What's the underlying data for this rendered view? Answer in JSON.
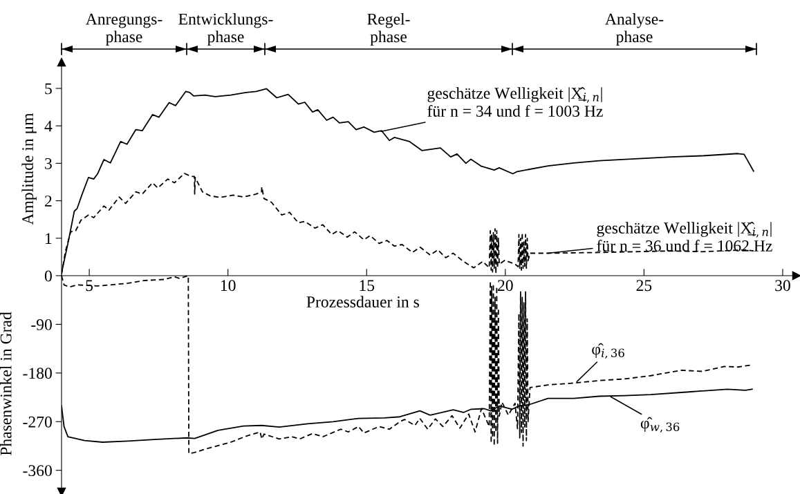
{
  "chart_data": [
    {
      "type": "line",
      "xlabel": "Prozessdauer in s",
      "ylabel": "Amplitude in μm",
      "xlim": [
        4,
        30.5
      ],
      "ylim": [
        0,
        5.7
      ],
      "xticks": [
        5,
        10,
        15,
        20,
        25,
        30
      ],
      "yticks": [
        0,
        1,
        2,
        3,
        4,
        5
      ],
      "series": [
        {
          "color": "#000000",
          "line_style": "solid",
          "x": [
            4.0,
            4.23,
            4.46,
            4.56,
            4.74,
            4.97,
            5.16,
            5.3,
            5.53,
            5.76,
            6.13,
            6.36,
            6.68,
            6.91,
            7.28,
            7.51,
            7.88,
            8.11,
            8.48,
            8.62,
            8.76,
            9.17,
            9.54,
            10.1,
            10.65,
            11.02,
            11.39,
            11.76,
            12.17,
            12.54,
            12.77,
            13.05,
            13.24,
            13.56,
            13.79,
            14.02,
            14.34,
            14.62,
            14.9,
            15.27,
            15.54,
            15.82,
            16.0,
            16.55,
            17.0,
            17.66,
            18.03,
            18.26,
            18.58,
            18.76,
            19.14,
            19.6,
            19.78,
            20.27,
            20.43,
            21.54,
            22.47,
            23.39,
            24.68,
            25.98,
            27.09,
            28.38,
            28.61,
            28.74,
            28.95
          ],
          "values": [
            0.07,
            0.86,
            1.72,
            1.79,
            2.17,
            2.62,
            2.58,
            2.72,
            3.1,
            3.01,
            3.58,
            3.51,
            3.9,
            3.87,
            4.3,
            4.23,
            4.62,
            4.54,
            4.92,
            4.89,
            4.8,
            4.82,
            4.78,
            4.82,
            4.89,
            4.92,
            4.99,
            4.75,
            4.84,
            4.58,
            4.63,
            4.37,
            4.43,
            4.15,
            4.23,
            4.08,
            4.11,
            3.9,
            3.97,
            3.83,
            3.87,
            3.61,
            3.69,
            3.58,
            3.34,
            3.41,
            3.17,
            3.25,
            3.0,
            3.11,
            2.92,
            2.82,
            2.88,
            2.72,
            2.78,
            2.93,
            3.01,
            3.07,
            3.12,
            3.17,
            3.2,
            3.26,
            3.24,
            3.07,
            2.79
          ]
        },
        {
          "color": "#000000",
          "line_style": "dashed",
          "x": [
            4.0,
            4.14,
            4.33,
            4.51,
            4.7,
            4.97,
            5.16,
            5.53,
            5.71,
            6.08,
            6.31,
            6.68,
            6.91,
            7.28,
            7.47,
            7.83,
            8.07,
            8.43,
            8.67,
            8.79,
            8.8,
            8.82,
            9.08,
            9.36,
            9.73,
            10.19,
            10.56,
            11.02,
            11.21,
            11.22,
            11.3,
            11.57,
            11.94,
            12.22,
            12.54,
            12.77,
            13.14,
            13.42,
            13.74,
            13.97,
            14.3,
            14.57,
            14.9,
            15.13,
            15.45,
            15.73,
            16.0,
            16.28,
            16.65,
            16.93,
            17.29,
            17.57,
            17.85,
            18.12,
            18.49,
            18.86,
            19.19,
            19.42,
            19.46,
            19.49,
            19.51,
            19.54,
            19.57,
            19.6,
            19.63,
            19.66,
            19.69,
            19.72,
            19.75,
            19.78,
            19.98,
            20.35,
            20.46,
            20.49,
            20.52,
            20.55,
            20.58,
            20.61,
            20.64,
            20.67,
            20.7,
            20.73,
            20.76,
            20.79,
            20.82,
            20.89,
            21.54,
            23.39,
            25.24,
            25.98,
            27.09,
            28.66,
            28.95
          ],
          "values": [
            0.03,
            0.65,
            1.17,
            1.2,
            1.48,
            1.62,
            1.55,
            1.86,
            1.75,
            2.1,
            1.93,
            2.24,
            2.18,
            2.48,
            2.34,
            2.58,
            2.48,
            2.73,
            2.65,
            2.65,
            2.18,
            2.62,
            2.24,
            2.13,
            2.09,
            2.15,
            2.1,
            2.18,
            2.24,
            2.37,
            2.06,
            1.96,
            1.62,
            1.69,
            1.41,
            1.45,
            1.27,
            1.36,
            1.1,
            1.2,
            1.03,
            1.17,
            0.96,
            1.07,
            0.86,
            0.94,
            0.79,
            0.83,
            0.62,
            0.76,
            0.55,
            0.69,
            0.48,
            0.6,
            0.38,
            0.21,
            0.38,
            0.21,
            1.2,
            0.15,
            1.1,
            0.1,
            1.15,
            0.2,
            1.25,
            0.05,
            1.2,
            0.2,
            1.0,
            0.3,
            0.41,
            0.31,
            0.24,
            1.1,
            0.2,
            1.0,
            0.15,
            1.15,
            0.2,
            0.9,
            0.25,
            1.1,
            0.2,
            1.0,
            0.4,
            0.6,
            0.6,
            0.62,
            0.65,
            0.66,
            0.64,
            0.69,
            0.66
          ]
        }
      ],
      "annotations": [
        "Anregungs-\nphase",
        "Entwicklungs-\nphase",
        "Regel-\nphase",
        "Analyse-\nphase",
        {
          "text": "geschätze Welligkeit |X̲̂$_{i,n}$|\nfür n = 34 und f = 1003 Hz",
          "x": 15.52,
          "y": 3.85
        },
        {
          "text": "geschätze Welligkeit |X̲̂$_{i,n}$|\nfür n = 36 und f = 1062 Hz",
          "x": 21.53,
          "y": 0.6
        }
      ]
    },
    {
      "type": "line",
      "ylabel": "Phasenwinkel in Grad",
      "xlim": [
        4,
        30.5
      ],
      "ylim": [
        -400,
        0
      ],
      "tick_labels": "y",
      "yticks": [
        {
          "value": -90,
          "label": "-90"
        },
        {
          "value": -180,
          "label": "-180"
        },
        {
          "value": -270,
          "label": "-270"
        },
        {
          "value": -360,
          "label": "-360"
        }
      ],
      "series": [
        {
          "color": "#000000",
          "line_style": "solid",
          "x": [
            4.0,
            4.09,
            4.23,
            4.83,
            5.48,
            6.4,
            7.33,
            8.53,
            8.8,
            9.64,
            10.56,
            11.21,
            11.85,
            12.87,
            13.79,
            14.71,
            15.64,
            16.2,
            16.92,
            17.29,
            18.12,
            18.49,
            18.77,
            19.24,
            19.47,
            19.79,
            20.25,
            20.49,
            20.89,
            21.54,
            22.47,
            23.39,
            24.3,
            25.24,
            26.62,
            28.0,
            28.66,
            28.9
          ],
          "values": [
            -241,
            -279,
            -298,
            -305,
            -308,
            -306,
            -303,
            -300,
            -301,
            -286,
            -278,
            -277,
            -280,
            -274,
            -270,
            -264,
            -263,
            -261,
            -250,
            -258,
            -248,
            -253,
            -247,
            -246,
            -250,
            -241,
            -247,
            -241,
            -238,
            -227,
            -227,
            -223,
            -222,
            -220,
            -215,
            -210,
            -212,
            -210
          ]
        },
        {
          "color": "#000000",
          "line_style": "dashed",
          "x": [
            4.0,
            4.09,
            4.28,
            4.56,
            5.3,
            5.76,
            6.4,
            6.96,
            7.7,
            8.07,
            8.25,
            8.57,
            8.59,
            8.8,
            9.17,
            10.1,
            10.65,
            11.16,
            11.22,
            11.3,
            11.85,
            12.31,
            12.59,
            13.05,
            13.42,
            14.07,
            14.34,
            14.71,
            14.9,
            15.45,
            15.82,
            16.2,
            16.37,
            16.74,
            16.92,
            17.2,
            17.48,
            17.75,
            18.08,
            18.36,
            18.68,
            18.91,
            19.14,
            19.42,
            19.46,
            19.49,
            19.51,
            19.54,
            19.57,
            19.6,
            19.63,
            19.66,
            19.69,
            19.72,
            19.75,
            19.78,
            19.88,
            20.11,
            20.35,
            20.44,
            20.49,
            20.52,
            20.55,
            20.58,
            20.61,
            20.64,
            20.67,
            20.7,
            20.73,
            20.76,
            20.79,
            20.82,
            20.89,
            21.54,
            22.38,
            23.39,
            24.3,
            25.24,
            26.35,
            27.09,
            27.9,
            28.38,
            28.9
          ],
          "values": [
            0,
            -17,
            -21,
            -17,
            -19,
            -17,
            -14,
            -9,
            -7,
            -2,
            -5,
            0,
            -329,
            -327,
            -321,
            -308,
            -297,
            -289,
            -302,
            -293,
            -302,
            -298,
            -302,
            -292,
            -298,
            -284,
            -289,
            -279,
            -291,
            -279,
            -284,
            -270,
            -266,
            -277,
            -264,
            -284,
            -265,
            -279,
            -259,
            -282,
            -256,
            -289,
            -246,
            -279,
            -10,
            -310,
            -20,
            -300,
            -15,
            -315,
            -40,
            -290,
            -20,
            -310,
            -60,
            -260,
            -234,
            -258,
            -236,
            -283,
            -70,
            -300,
            -30,
            -290,
            -40,
            -315,
            -50,
            -280,
            -30,
            -305,
            -80,
            -270,
            -207,
            -202,
            -199,
            -194,
            -191,
            -185,
            -175,
            -177,
            -168,
            -169,
            -165
          ]
        }
      ],
      "annotations": [
        {
          "text": "φ̂$_{i,36}$",
          "x": 22.58,
          "y": -196
        },
        {
          "text": "φ̂$_{w,36}$",
          "x": 23.8,
          "y": -224
        }
      ]
    }
  ]
}
